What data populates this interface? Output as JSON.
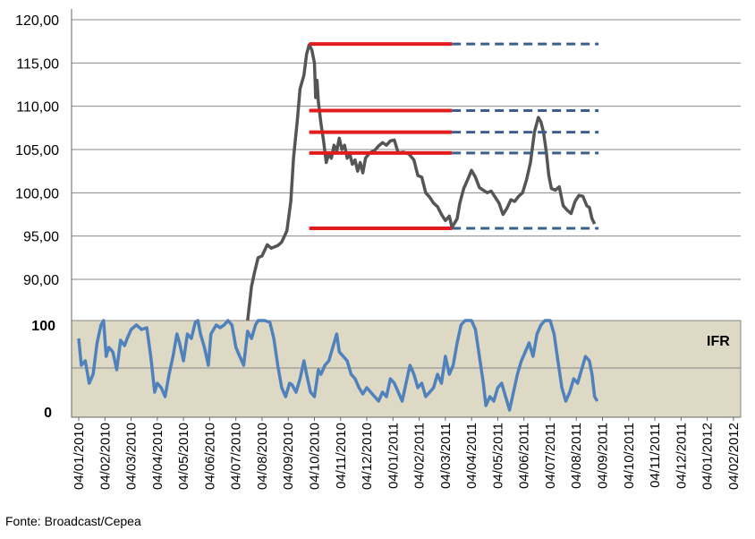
{
  "chart_data": [
    {
      "type": "line",
      "ylim": [
        90,
        120
      ],
      "y_ticks": [
        "90,00",
        "95,00",
        "100,00",
        "105,00",
        "110,00",
        "115,00",
        "120,00"
      ],
      "grid": true,
      "series_color": "#555555",
      "series": [
        {
          "values": [
            [
              6.7,
              90.6
            ],
            [
              6.85,
              92.5
            ],
            [
              7.0,
              92.7
            ],
            [
              7.2,
              94.0
            ],
            [
              7.35,
              93.6
            ],
            [
              7.6,
              93.9
            ],
            [
              7.75,
              94.3
            ],
            [
              7.95,
              95.6
            ],
            [
              8.1,
              99.0
            ],
            [
              8.2,
              104.0
            ],
            [
              8.35,
              108.5
            ],
            [
              8.45,
              112.0
            ],
            [
              8.6,
              113.6
            ],
            [
              8.7,
              116.0
            ],
            [
              8.8,
              117.1
            ],
            [
              8.9,
              116.5
            ],
            [
              9.0,
              115.0
            ],
            [
              9.05,
              111.0
            ],
            [
              9.1,
              113.0
            ],
            [
              9.15,
              110.5
            ],
            [
              9.25,
              108.0
            ],
            [
              9.35,
              106.0
            ],
            [
              9.45,
              103.5
            ],
            [
              9.55,
              104.5
            ],
            [
              9.65,
              104.0
            ],
            [
              9.75,
              105.5
            ],
            [
              9.85,
              104.8
            ],
            [
              9.95,
              106.3
            ],
            [
              10.05,
              105.0
            ],
            [
              10.15,
              105.5
            ],
            [
              10.25,
              104.0
            ],
            [
              10.35,
              104.5
            ],
            [
              10.45,
              103.3
            ],
            [
              10.55,
              103.8
            ],
            [
              10.65,
              102.5
            ],
            [
              10.75,
              103.5
            ],
            [
              10.85,
              102.3
            ],
            [
              10.95,
              104.0
            ],
            [
              11.1,
              104.6
            ],
            [
              11.3,
              104.9
            ],
            [
              11.45,
              105.4
            ],
            [
              11.6,
              105.8
            ],
            [
              11.75,
              105.5
            ],
            [
              11.9,
              106.0
            ],
            [
              12.05,
              106.1
            ],
            [
              12.2,
              104.6
            ],
            [
              12.4,
              104.7
            ],
            [
              12.6,
              104.5
            ],
            [
              12.8,
              103.8
            ],
            [
              12.95,
              102.0
            ],
            [
              13.1,
              101.8
            ],
            [
              13.25,
              100.0
            ],
            [
              13.4,
              99.5
            ],
            [
              13.55,
              98.8
            ],
            [
              13.7,
              98.4
            ],
            [
              13.85,
              97.5
            ],
            [
              14.0,
              96.8
            ],
            [
              14.15,
              97.3
            ],
            [
              14.25,
              96.0
            ],
            [
              14.35,
              96.5
            ],
            [
              14.45,
              97.0
            ],
            [
              14.55,
              98.8
            ],
            [
              14.7,
              100.5
            ],
            [
              14.85,
              101.5
            ],
            [
              15.0,
              102.6
            ],
            [
              15.15,
              101.8
            ],
            [
              15.3,
              100.6
            ],
            [
              15.45,
              100.3
            ],
            [
              15.6,
              100.0
            ],
            [
              15.75,
              100.2
            ],
            [
              15.9,
              99.5
            ],
            [
              16.05,
              98.8
            ],
            [
              16.2,
              97.5
            ],
            [
              16.35,
              98.2
            ],
            [
              16.5,
              99.2
            ],
            [
              16.65,
              99.0
            ],
            [
              16.8,
              99.6
            ],
            [
              16.95,
              100.0
            ],
            [
              17.1,
              101.5
            ],
            [
              17.25,
              103.5
            ],
            [
              17.4,
              107.0
            ],
            [
              17.55,
              108.7
            ],
            [
              17.65,
              108.2
            ],
            [
              17.75,
              107.0
            ],
            [
              17.85,
              104.8
            ],
            [
              17.95,
              102.0
            ],
            [
              18.05,
              100.5
            ],
            [
              18.2,
              100.3
            ],
            [
              18.35,
              100.7
            ],
            [
              18.5,
              98.5
            ],
            [
              18.65,
              98.0
            ],
            [
              18.8,
              97.6
            ],
            [
              18.95,
              99.0
            ],
            [
              19.1,
              99.7
            ],
            [
              19.25,
              99.6
            ],
            [
              19.4,
              98.5
            ],
            [
              19.5,
              98.3
            ],
            [
              19.6,
              97.0
            ],
            [
              19.7,
              96.4
            ]
          ]
        }
      ],
      "annotation_lines": [
        {
          "y": 117.2,
          "solid_x": [
            8.8,
            14.25
          ],
          "dashed_x": [
            14.25,
            19.85
          ]
        },
        {
          "y": 109.5,
          "solid_x": [
            8.8,
            14.25
          ],
          "dashed_x": [
            14.25,
            19.85
          ]
        },
        {
          "y": 107.0,
          "solid_x": [
            8.8,
            14.25
          ],
          "dashed_x": [
            14.25,
            19.85
          ]
        },
        {
          "y": 104.6,
          "solid_x": [
            8.8,
            14.25
          ],
          "dashed_x": [
            14.25,
            19.85
          ]
        },
        {
          "y": 95.9,
          "solid_x": [
            8.8,
            14.25
          ],
          "dashed_x": [
            14.25,
            19.85
          ]
        }
      ],
      "line_colors": {
        "solid": "#e21b1b",
        "dashed": "#3b5f8a"
      }
    },
    {
      "type": "line",
      "label": "IFR",
      "ylim": [
        0,
        100
      ],
      "y_ticks": [
        "0",
        "100"
      ],
      "background": "#ddd9c4",
      "series_color": "#4f81bd",
      "series": [
        {
          "values": [
            [
              0.0,
              80
            ],
            [
              0.1,
              50
            ],
            [
              0.25,
              55
            ],
            [
              0.4,
              30
            ],
            [
              0.55,
              40
            ],
            [
              0.7,
              75
            ],
            [
              0.85,
              95
            ],
            [
              0.95,
              100
            ],
            [
              1.05,
              60
            ],
            [
              1.15,
              70
            ],
            [
              1.3,
              65
            ],
            [
              1.45,
              45
            ],
            [
              1.6,
              78
            ],
            [
              1.75,
              72
            ],
            [
              1.85,
              80
            ],
            [
              2.0,
              90
            ],
            [
              2.2,
              95
            ],
            [
              2.4,
              90
            ],
            [
              2.6,
              92
            ],
            [
              2.75,
              60
            ],
            [
              2.9,
              20
            ],
            [
              3.0,
              30
            ],
            [
              3.15,
              25
            ],
            [
              3.3,
              15
            ],
            [
              3.45,
              40
            ],
            [
              3.6,
              60
            ],
            [
              3.75,
              85
            ],
            [
              3.85,
              75
            ],
            [
              4.0,
              55
            ],
            [
              4.15,
              85
            ],
            [
              4.3,
              80
            ],
            [
              4.45,
              98
            ],
            [
              4.55,
              100
            ],
            [
              4.65,
              85
            ],
            [
              4.8,
              70
            ],
            [
              4.95,
              50
            ],
            [
              5.05,
              85
            ],
            [
              5.25,
              95
            ],
            [
              5.4,
              92
            ],
            [
              5.55,
              95
            ],
            [
              5.7,
              100
            ],
            [
              5.85,
              95
            ],
            [
              6.0,
              70
            ],
            [
              6.15,
              60
            ],
            [
              6.3,
              50
            ],
            [
              6.45,
              88
            ],
            [
              6.6,
              80
            ],
            [
              6.75,
              95
            ],
            [
              6.85,
              100
            ],
            [
              7.1,
              100
            ],
            [
              7.3,
              98
            ],
            [
              7.45,
              80
            ],
            [
              7.6,
              50
            ],
            [
              7.75,
              25
            ],
            [
              7.9,
              15
            ],
            [
              8.05,
              30
            ],
            [
              8.15,
              28
            ],
            [
              8.3,
              20
            ],
            [
              8.45,
              35
            ],
            [
              8.6,
              55
            ],
            [
              8.7,
              40
            ],
            [
              8.85,
              20
            ],
            [
              9.0,
              15
            ],
            [
              9.15,
              45
            ],
            [
              9.25,
              40
            ],
            [
              9.4,
              50
            ],
            [
              9.55,
              55
            ],
            [
              9.7,
              70
            ],
            [
              9.85,
              85
            ],
            [
              9.95,
              65
            ],
            [
              10.1,
              60
            ],
            [
              10.25,
              55
            ],
            [
              10.4,
              40
            ],
            [
              10.55,
              35
            ],
            [
              10.7,
              25
            ],
            [
              10.85,
              18
            ],
            [
              11.0,
              25
            ],
            [
              11.15,
              20
            ],
            [
              11.3,
              15
            ],
            [
              11.45,
              10
            ],
            [
              11.6,
              20
            ],
            [
              11.75,
              15
            ],
            [
              11.9,
              35
            ],
            [
              12.05,
              30
            ],
            [
              12.2,
              20
            ],
            [
              12.35,
              10
            ],
            [
              12.5,
              30
            ],
            [
              12.65,
              50
            ],
            [
              12.8,
              40
            ],
            [
              12.95,
              25
            ],
            [
              13.1,
              30
            ],
            [
              13.25,
              15
            ],
            [
              13.4,
              20
            ],
            [
              13.55,
              25
            ],
            [
              13.7,
              40
            ],
            [
              13.85,
              30
            ],
            [
              14.0,
              60
            ],
            [
              14.15,
              40
            ],
            [
              14.3,
              50
            ],
            [
              14.45,
              75
            ],
            [
              14.6,
              95
            ],
            [
              14.75,
              100
            ],
            [
              15.0,
              100
            ],
            [
              15.15,
              90
            ],
            [
              15.3,
              60
            ],
            [
              15.45,
              30
            ],
            [
              15.55,
              5
            ],
            [
              15.7,
              15
            ],
            [
              15.85,
              10
            ],
            [
              16.0,
              25
            ],
            [
              16.15,
              30
            ],
            [
              16.3,
              15
            ],
            [
              16.45,
              0
            ],
            [
              16.6,
              20
            ],
            [
              16.75,
              40
            ],
            [
              16.9,
              55
            ],
            [
              17.05,
              65
            ],
            [
              17.2,
              75
            ],
            [
              17.35,
              60
            ],
            [
              17.5,
              85
            ],
            [
              17.65,
              95
            ],
            [
              17.8,
              100
            ],
            [
              18.0,
              100
            ],
            [
              18.15,
              85
            ],
            [
              18.3,
              55
            ],
            [
              18.45,
              25
            ],
            [
              18.6,
              10
            ],
            [
              18.75,
              20
            ],
            [
              18.9,
              35
            ],
            [
              19.05,
              30
            ],
            [
              19.2,
              45
            ],
            [
              19.35,
              60
            ],
            [
              19.5,
              55
            ],
            [
              19.6,
              40
            ],
            [
              19.7,
              15
            ],
            [
              19.8,
              10
            ]
          ]
        }
      ]
    }
  ],
  "x_categories": [
    "04/01/2010",
    "04/02/2010",
    "04/03/2010",
    "04/04/2010",
    "04/05/2010",
    "04/06/2010",
    "04/07/2010",
    "04/08/2010",
    "04/09/2010",
    "04/10/2010",
    "04/11/2010",
    "04/12/2010",
    "04/01/2011",
    "04/02/2011",
    "04/03/2011",
    "04/04/2011",
    "04/05/2011",
    "04/06/2011",
    "04/07/2011",
    "04/08/2011",
    "04/09/2011",
    "04/10/2011",
    "04/11/2011",
    "04/12/2011",
    "04/01/2012",
    "04/02/2012"
  ],
  "source": "Fonte: Broadcast/Cepea"
}
